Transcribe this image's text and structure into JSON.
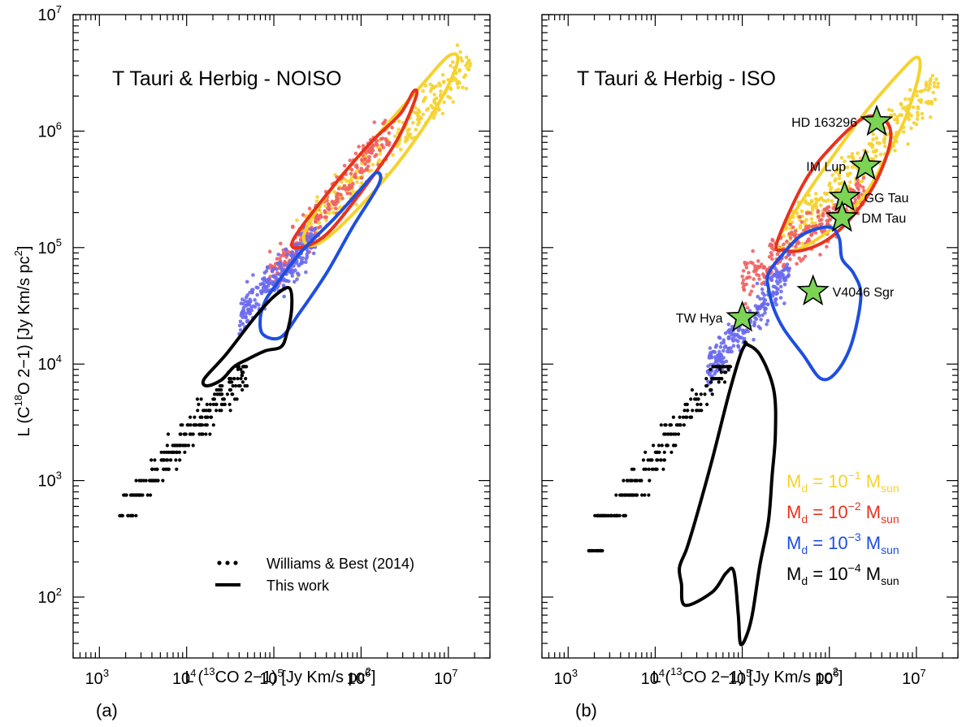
{
  "chart_data": [
    {
      "id": "panel-a",
      "type": "scatter",
      "panel_label": "(a)",
      "title": "T Tauri & Herbig - NOISO",
      "xlabel": {
        "prefix": "L (",
        "sup": "13",
        "mid": "CO 2−1) [Jy Km/s pc",
        "sup2": "2",
        "suffix": "]"
      },
      "ylabel": {
        "prefix": "L (C",
        "sup": "18",
        "mid": "O 2−1) [Jy Km/s pc",
        "sup2": "2",
        "suffix": "]"
      },
      "xscale": "log",
      "yscale": "log",
      "xlim": [
        500,
        30000000
      ],
      "ylim": [
        30,
        10000000
      ],
      "xticks": [
        {
          "base": "10",
          "exp": "3",
          "value": 1000
        },
        {
          "base": "10",
          "exp": "4",
          "value": 10000
        },
        {
          "base": "10",
          "exp": "5",
          "value": 100000
        },
        {
          "base": "10",
          "exp": "6",
          "value": 1000000
        },
        {
          "base": "10",
          "exp": "7",
          "value": 10000000
        }
      ],
      "yticks": [
        {
          "base": "10",
          "exp": "2",
          "value": 100
        },
        {
          "base": "10",
          "exp": "3",
          "value": 1000
        },
        {
          "base": "10",
          "exp": "4",
          "value": 10000
        },
        {
          "base": "10",
          "exp": "5",
          "value": 100000
        },
        {
          "base": "10",
          "exp": "6",
          "value": 1000000
        },
        {
          "base": "10",
          "exp": "7",
          "value": 10000000
        }
      ],
      "series": [
        {
          "name": "Md = 1e-1 Msun",
          "color": "#f5d22e",
          "point_cloud": {
            "x_range": [
              180000,
              18000000
            ],
            "y_at": [
              [
                180000,
                110000
              ],
              [
                18000000,
                4000000
              ]
            ],
            "scatter_dex": 0.16
          }
        },
        {
          "name": "Md = 1e-2 Msun",
          "color": "#f06262",
          "point_cloud": {
            "x_range": [
              90000,
              2300000
            ],
            "y_at": [
              [
                90000,
                55000
              ],
              [
                2300000,
                1100000
              ]
            ],
            "scatter_dex": 0.15
          }
        },
        {
          "name": "Md = 1e-3 Msun",
          "color": "#6a6af0",
          "point_cloud": {
            "x_range": [
              40000,
              300000
            ],
            "y_at": [
              [
                40000,
                25000
              ],
              [
                300000,
                120000
              ]
            ],
            "scatter_dex": 0.14
          }
        }
      ],
      "observed_points": {
        "name": "Williams & Best (2014)",
        "color": "#000000",
        "x_range": [
          1700,
          50000
        ],
        "y_at": [
          [
            1700,
            500
          ],
          [
            50000,
            9500
          ]
        ],
        "y_steps": [
          500,
          750,
          1000,
          1250,
          1500,
          1750,
          2000,
          2500,
          3000,
          3500,
          4000,
          4500,
          5000,
          5500,
          6000,
          6500,
          7000,
          7500,
          8000,
          8500,
          9000,
          9500
        ]
      },
      "contours": [
        {
          "name": "Md = 1e-1 Msun",
          "color": "#f5d22e",
          "points": [
            [
              230000,
              140000
            ],
            [
              500000,
              350000
            ],
            [
              1500000,
              900000
            ],
            [
              5000000,
              2500000
            ],
            [
              10000000,
              4400000
            ],
            [
              12800000,
              4000000
            ],
            [
              8000000,
              1800000
            ],
            [
              3000000,
              600000
            ],
            [
              1000000,
              230000
            ],
            [
              400000,
              120000
            ],
            [
              250000,
              105000
            ]
          ]
        },
        {
          "name": "Md = 1e-2 Msun",
          "color": "#e8321e",
          "points": [
            [
              170000,
              120000
            ],
            [
              500000,
              350000
            ],
            [
              1300000,
              800000
            ],
            [
              2800000,
              1400000
            ],
            [
              4000000,
              2200000
            ],
            [
              4200000,
              1900000
            ],
            [
              2500000,
              800000
            ],
            [
              1000000,
              300000
            ],
            [
              400000,
              130000
            ],
            [
              200000,
              100000
            ]
          ]
        },
        {
          "name": "Md = 1e-3 Msun",
          "color": "#1e4ee0",
          "points": [
            [
              100000,
              45000
            ],
            [
              200000,
              90000
            ],
            [
              500000,
              180000
            ],
            [
              1000000,
              320000
            ],
            [
              1500000,
              440000
            ],
            [
              1600000,
              350000
            ],
            [
              800000,
              150000
            ],
            [
              400000,
              60000
            ],
            [
              200000,
              28000
            ],
            [
              120000,
              17000
            ],
            [
              75000,
              18000
            ],
            [
              70000,
              25000
            ],
            [
              80000,
              35000
            ]
          ]
        },
        {
          "name": "Md = 1e-4 Msun",
          "color": "#000000",
          "points": [
            [
              16000,
              7500
            ],
            [
              28000,
              12000
            ],
            [
              60000,
              25000
            ],
            [
              100000,
              38000
            ],
            [
              150000,
              45000
            ],
            [
              160000,
              30000
            ],
            [
              140000,
              18000
            ],
            [
              120000,
              14000
            ],
            [
              80000,
              13000
            ],
            [
              50000,
              11000
            ],
            [
              35000,
              9500
            ],
            [
              25000,
              7300
            ],
            [
              17000,
              6500
            ]
          ]
        }
      ],
      "legend": {
        "position": "bottom-center",
        "entries": [
          {
            "symbol": "dots",
            "label": "Williams & Best (2014)"
          },
          {
            "symbol": "line",
            "label": "This work"
          }
        ]
      }
    },
    {
      "id": "panel-b",
      "type": "scatter",
      "panel_label": "(b)",
      "title": "T Tauri & Herbig - ISO",
      "xlabel": {
        "prefix": "L (",
        "sup": "13",
        "mid": "CO 2−1) [Jy Km/s pc",
        "sup2": "2",
        "suffix": "]"
      },
      "xscale": "log",
      "yscale": "log",
      "xlim": [
        500,
        30000000
      ],
      "ylim": [
        30,
        10000000
      ],
      "xticks": [
        {
          "base": "10",
          "exp": "3",
          "value": 1000
        },
        {
          "base": "10",
          "exp": "4",
          "value": 10000
        },
        {
          "base": "10",
          "exp": "5",
          "value": 100000
        },
        {
          "base": "10",
          "exp": "6",
          "value": 1000000
        },
        {
          "base": "10",
          "exp": "7",
          "value": 10000000
        }
      ],
      "series": [
        {
          "name": "Md = 1e-1 Msun",
          "color": "#f5d22e",
          "point_cloud": {
            "x_range": [
              280000,
              18000000
            ],
            "y_at": [
              [
                280000,
                110000
              ],
              [
                18000000,
                2500000
              ]
            ],
            "scatter_dex": 0.17
          }
        },
        {
          "name": "Md = 1e-2 Msun",
          "color": "#f06262",
          "point_cloud": {
            "x_range": [
              100000,
              2500000
            ],
            "y_at": [
              [
                100000,
                50000
              ],
              [
                2500000,
                300000
              ]
            ],
            "scatter_dex": 0.16
          }
        },
        {
          "name": "Md = 1e-3 Msun",
          "color": "#6a6af0",
          "point_cloud": {
            "x_range": [
              40000,
              350000
            ],
            "y_at": [
              [
                40000,
                9000
              ],
              [
                350000,
                60000
              ]
            ],
            "scatter_dex": 0.16
          }
        }
      ],
      "observed_points": {
        "name": "Williams & Best (2014)",
        "color": "#000000",
        "x_range": [
          1700,
          75000
        ],
        "y_at": [
          [
            1700,
            250
          ],
          [
            75000,
            12000
          ]
        ],
        "y_steps": [
          250,
          500,
          750,
          1000,
          1250,
          1500,
          1750,
          2000,
          2500,
          3000,
          3500,
          4000,
          4500,
          5000,
          5500,
          6000,
          6500,
          7000,
          7500,
          8000,
          8500,
          9000,
          9500
        ]
      },
      "contours": [
        {
          "name": "Md = 1e-1 Msun",
          "color": "#f5d22e",
          "points": [
            [
              250000,
              110000
            ],
            [
              500000,
              260000
            ],
            [
              1000000,
              550000
            ],
            [
              2500000,
              1400000
            ],
            [
              6000000,
              3000000
            ],
            [
              10000000,
              4300000
            ],
            [
              10800000,
              3200000
            ],
            [
              7500000,
              1300000
            ],
            [
              4500000,
              600000
            ],
            [
              2500000,
              280000
            ],
            [
              1000000,
              140000
            ],
            [
              400000,
              95000
            ]
          ]
        },
        {
          "name": "Md = 1e-2 Msun",
          "color": "#e8321e",
          "points": [
            [
              250000,
              110000
            ],
            [
              500000,
              350000
            ],
            [
              1000000,
              700000
            ],
            [
              2500000,
              1300000
            ],
            [
              4500000,
              1200000
            ],
            [
              5000000,
              800000
            ],
            [
              3500000,
              380000
            ],
            [
              2000000,
              200000
            ],
            [
              1000000,
              120000
            ],
            [
              500000,
              95000
            ],
            [
              300000,
              95000
            ]
          ]
        },
        {
          "name": "Md = 1e-3 Msun",
          "color": "#1e4ee0",
          "points": [
            [
              200000,
              60000
            ],
            [
              300000,
              90000
            ],
            [
              500000,
              130000
            ],
            [
              1000000,
              150000
            ],
            [
              1300000,
              120000
            ],
            [
              1400000,
              80000
            ],
            [
              1900000,
              60000
            ],
            [
              2300000,
              38000
            ],
            [
              1800000,
              15000
            ],
            [
              1200000,
              8500
            ],
            [
              800000,
              7500
            ],
            [
              500000,
              12000
            ],
            [
              300000,
              20000
            ],
            [
              230000,
              30000
            ],
            [
              200000,
              45000
            ]
          ]
        },
        {
          "name": "Md = 1e-4 Msun",
          "color": "#000000",
          "points": [
            [
              110000,
              15000
            ],
            [
              160000,
              12000
            ],
            [
              230000,
              6000
            ],
            [
              240000,
              2500
            ],
            [
              220000,
              1100
            ],
            [
              200000,
              450
            ],
            [
              160000,
              190
            ],
            [
              130000,
              70
            ],
            [
              110000,
              45
            ],
            [
              95000,
              40
            ],
            [
              90000,
              70
            ],
            [
              80000,
              165
            ],
            [
              65000,
              160
            ],
            [
              45000,
              110
            ],
            [
              22000,
              85
            ],
            [
              20000,
              130
            ],
            [
              19000,
              180
            ],
            [
              23000,
              260
            ],
            [
              30000,
              500
            ],
            [
              45000,
              1500
            ],
            [
              70000,
              5500
            ],
            [
              95000,
              12000
            ],
            [
              110000,
              15000
            ]
          ]
        }
      ],
      "sources": [
        {
          "name": "HD 163296",
          "x": 3500000,
          "y": 1200000,
          "label_side": "left"
        },
        {
          "name": "IM Lup",
          "x": 2600000,
          "y": 500000,
          "label_side": "left"
        },
        {
          "name": "GG Tau",
          "x": 1500000,
          "y": 270000,
          "label_side": "right"
        },
        {
          "name": "DM Tau",
          "x": 1400000,
          "y": 180000,
          "label_side": "right"
        },
        {
          "name": "V4046 Sgr",
          "x": 650000,
          "y": 42000,
          "label_side": "right"
        },
        {
          "name": "TW Hya",
          "x": 100000,
          "y": 25000,
          "label_side": "left"
        }
      ],
      "star_color": "#7cd455",
      "mass_legend": [
        {
          "color": "#f5d22e",
          "sym": "M",
          "sub": "d",
          "eq": " = 10",
          "exp": "−1",
          "unit": " M",
          "unit_sub": "sun"
        },
        {
          "color": "#e8321e",
          "sym": "M",
          "sub": "d",
          "eq": " = 10",
          "exp": "−2",
          "unit": " M",
          "unit_sub": "sun"
        },
        {
          "color": "#1e4ee0",
          "sym": "M",
          "sub": "d",
          "eq": " = 10",
          "exp": "−3",
          "unit": " M",
          "unit_sub": "sun"
        },
        {
          "color": "#000000",
          "sym": "M",
          "sub": "d",
          "eq": " = 10",
          "exp": "−4",
          "unit": " M",
          "unit_sub": "sun"
        }
      ]
    }
  ]
}
